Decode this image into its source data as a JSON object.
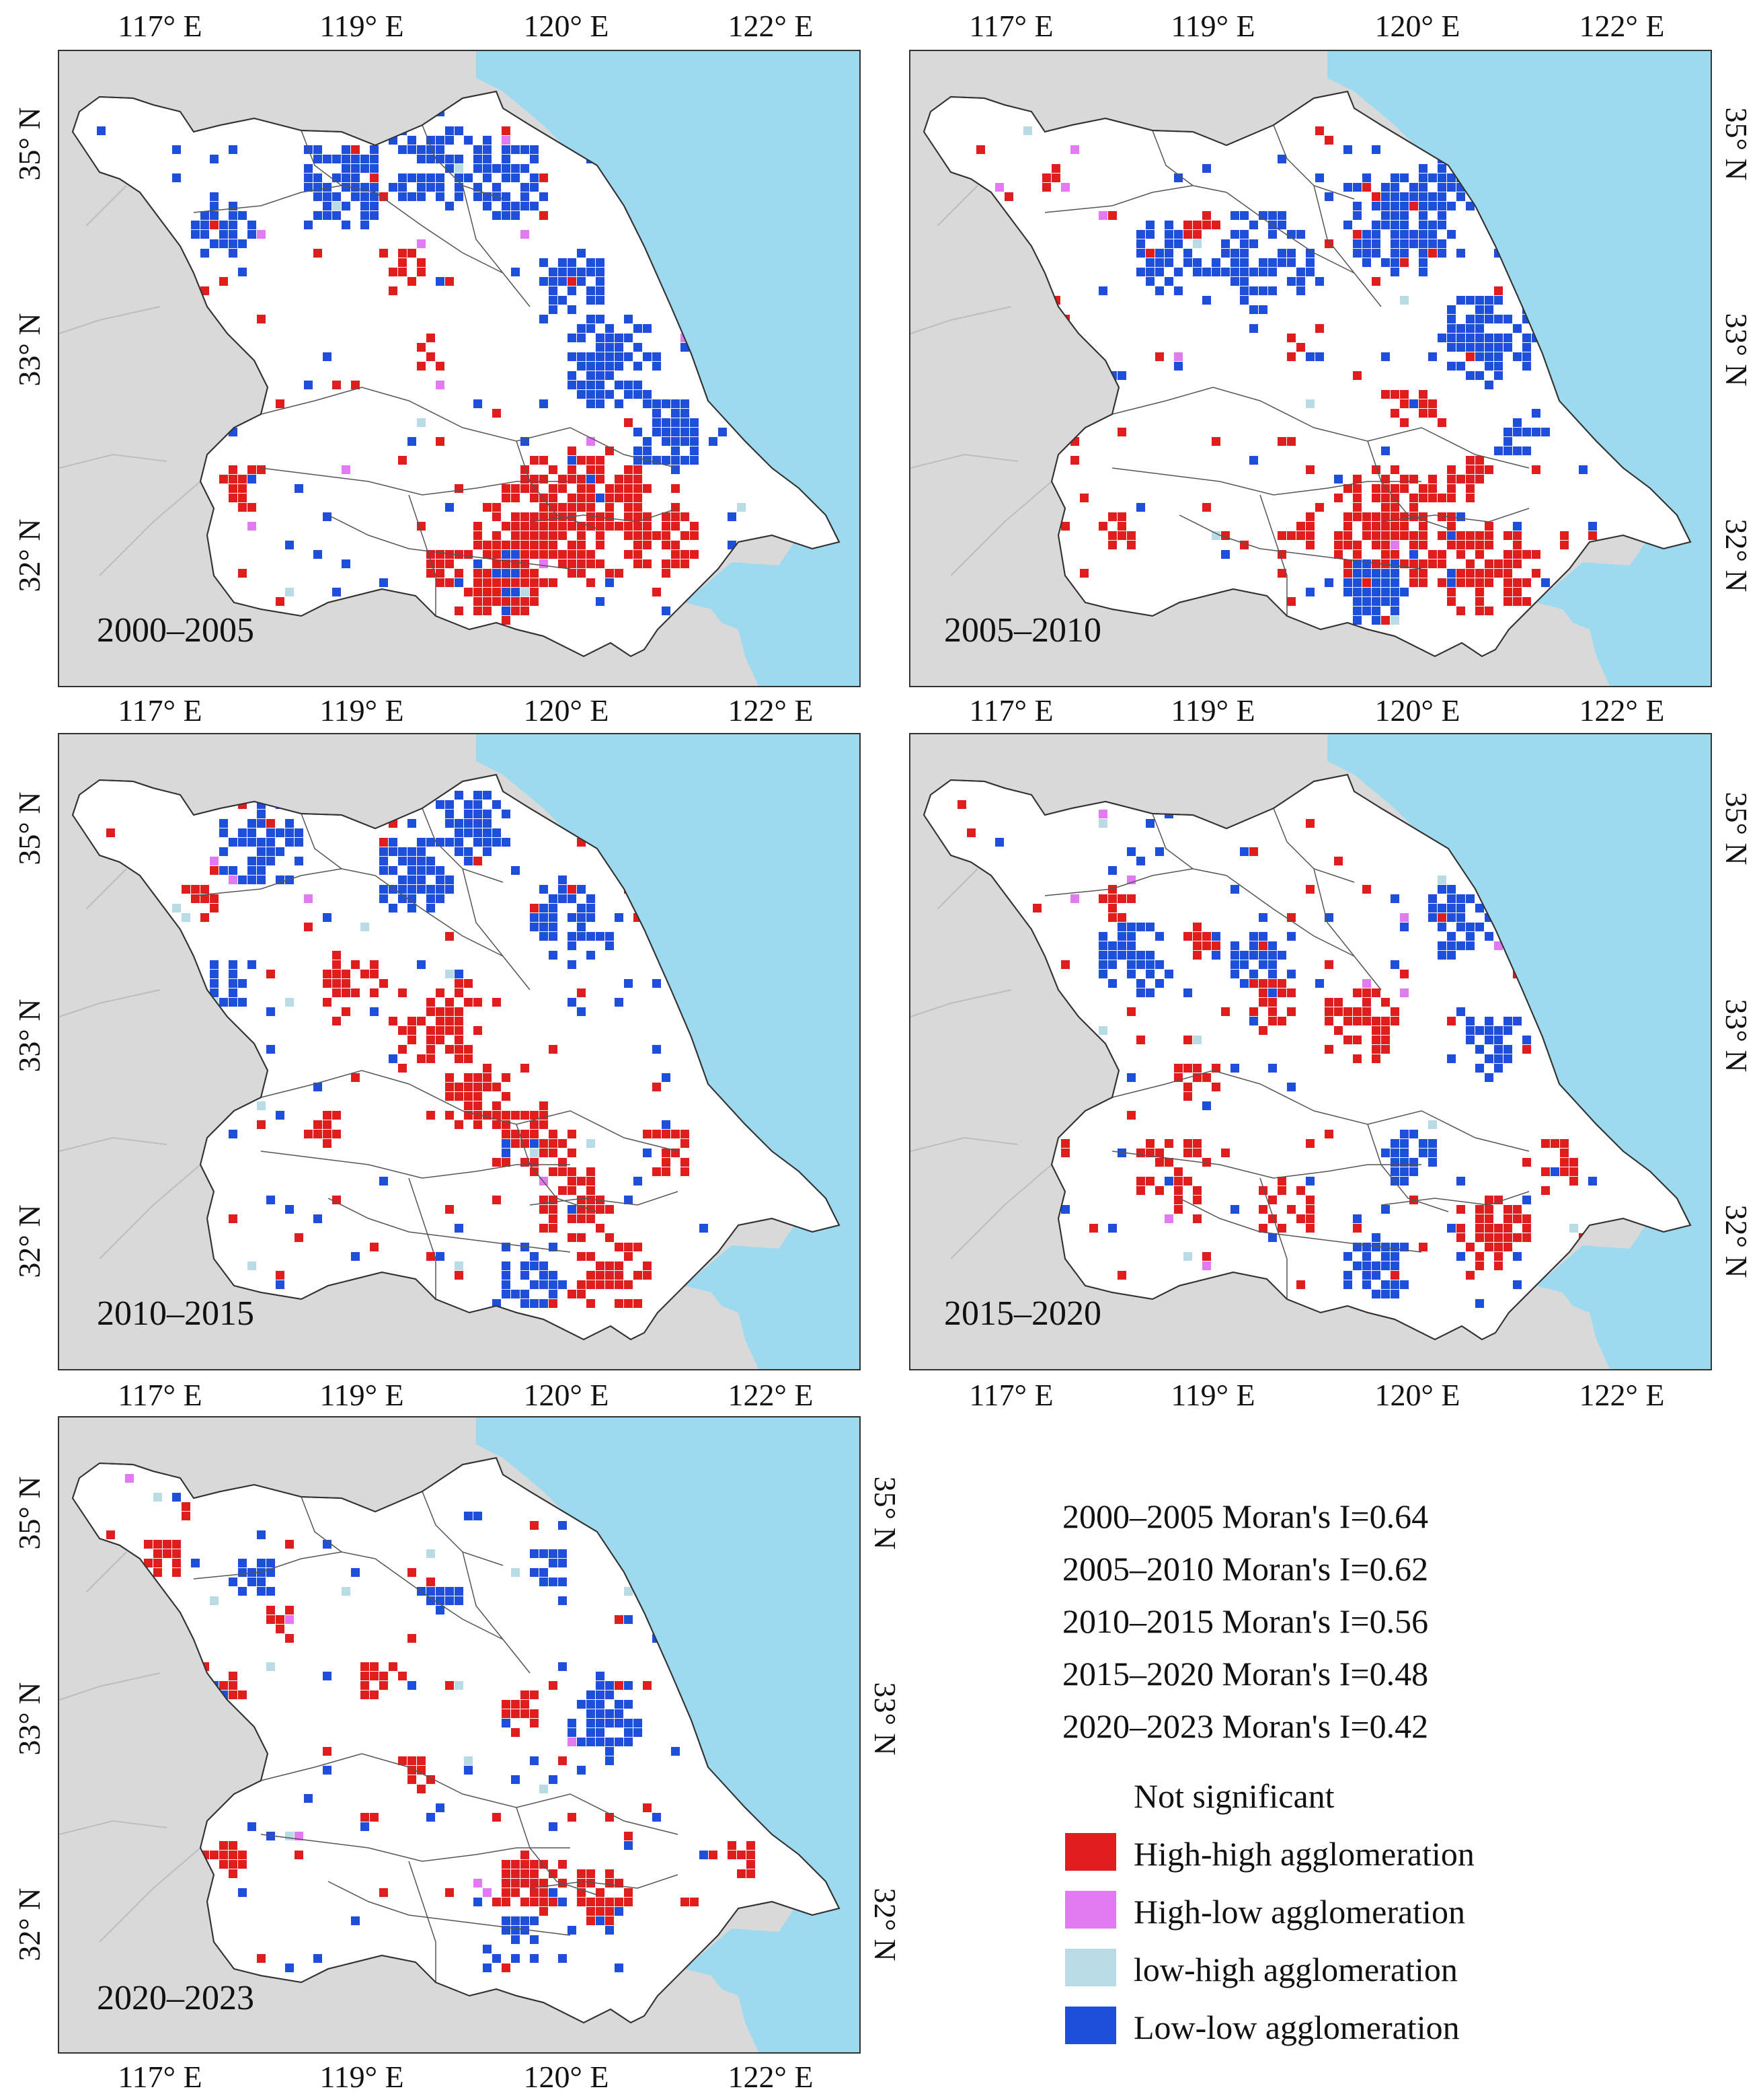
{
  "colors": {
    "sea": "#9ddaf0",
    "land_background": "#d9d9d9",
    "not_significant": "#ffffff",
    "high_high": "#e01d1d",
    "high_low": "#e27bf2",
    "low_high": "#b9dbe6",
    "low_low": "#1d4fdb"
  },
  "axis_labels": {
    "longitude": [
      "117° E",
      "119° E",
      "120° E",
      "122° E"
    ],
    "latitude": [
      "35° N",
      "33° N",
      "32° N"
    ]
  },
  "maps": [
    {
      "period": "2000–2005"
    },
    {
      "period": "2005–2010"
    },
    {
      "period": "2010–2015"
    },
    {
      "period": "2015–2020"
    },
    {
      "period": "2020–2023"
    }
  ],
  "moran": [
    {
      "period": "2000–2005",
      "text": "2000–2005 Moran's I=0.64",
      "value": 0.64
    },
    {
      "period": "2005–2010",
      "text": "2005–2010 Moran's I=0.62",
      "value": 0.62
    },
    {
      "period": "2010–2015",
      "text": "2010–2015 Moran's I=0.56",
      "value": 0.56
    },
    {
      "period": "2015–2020",
      "text": "2015–2020 Moran's I=0.48",
      "value": 0.48
    },
    {
      "period": "2020–2023",
      "text": "2020–2023 Moran's I=0.42",
      "value": 0.42
    }
  ],
  "legend": [
    {
      "label": "Not significant",
      "color": "#ffffff"
    },
    {
      "label": "High-high agglomeration",
      "color": "#e01d1d"
    },
    {
      "label": "High-low agglomeration",
      "color": "#e27bf2"
    },
    {
      "label": "low-high agglomeration",
      "color": "#b9dbe6"
    },
    {
      "label": "Low-low agglomeration",
      "color": "#1d4fdb"
    }
  ]
}
